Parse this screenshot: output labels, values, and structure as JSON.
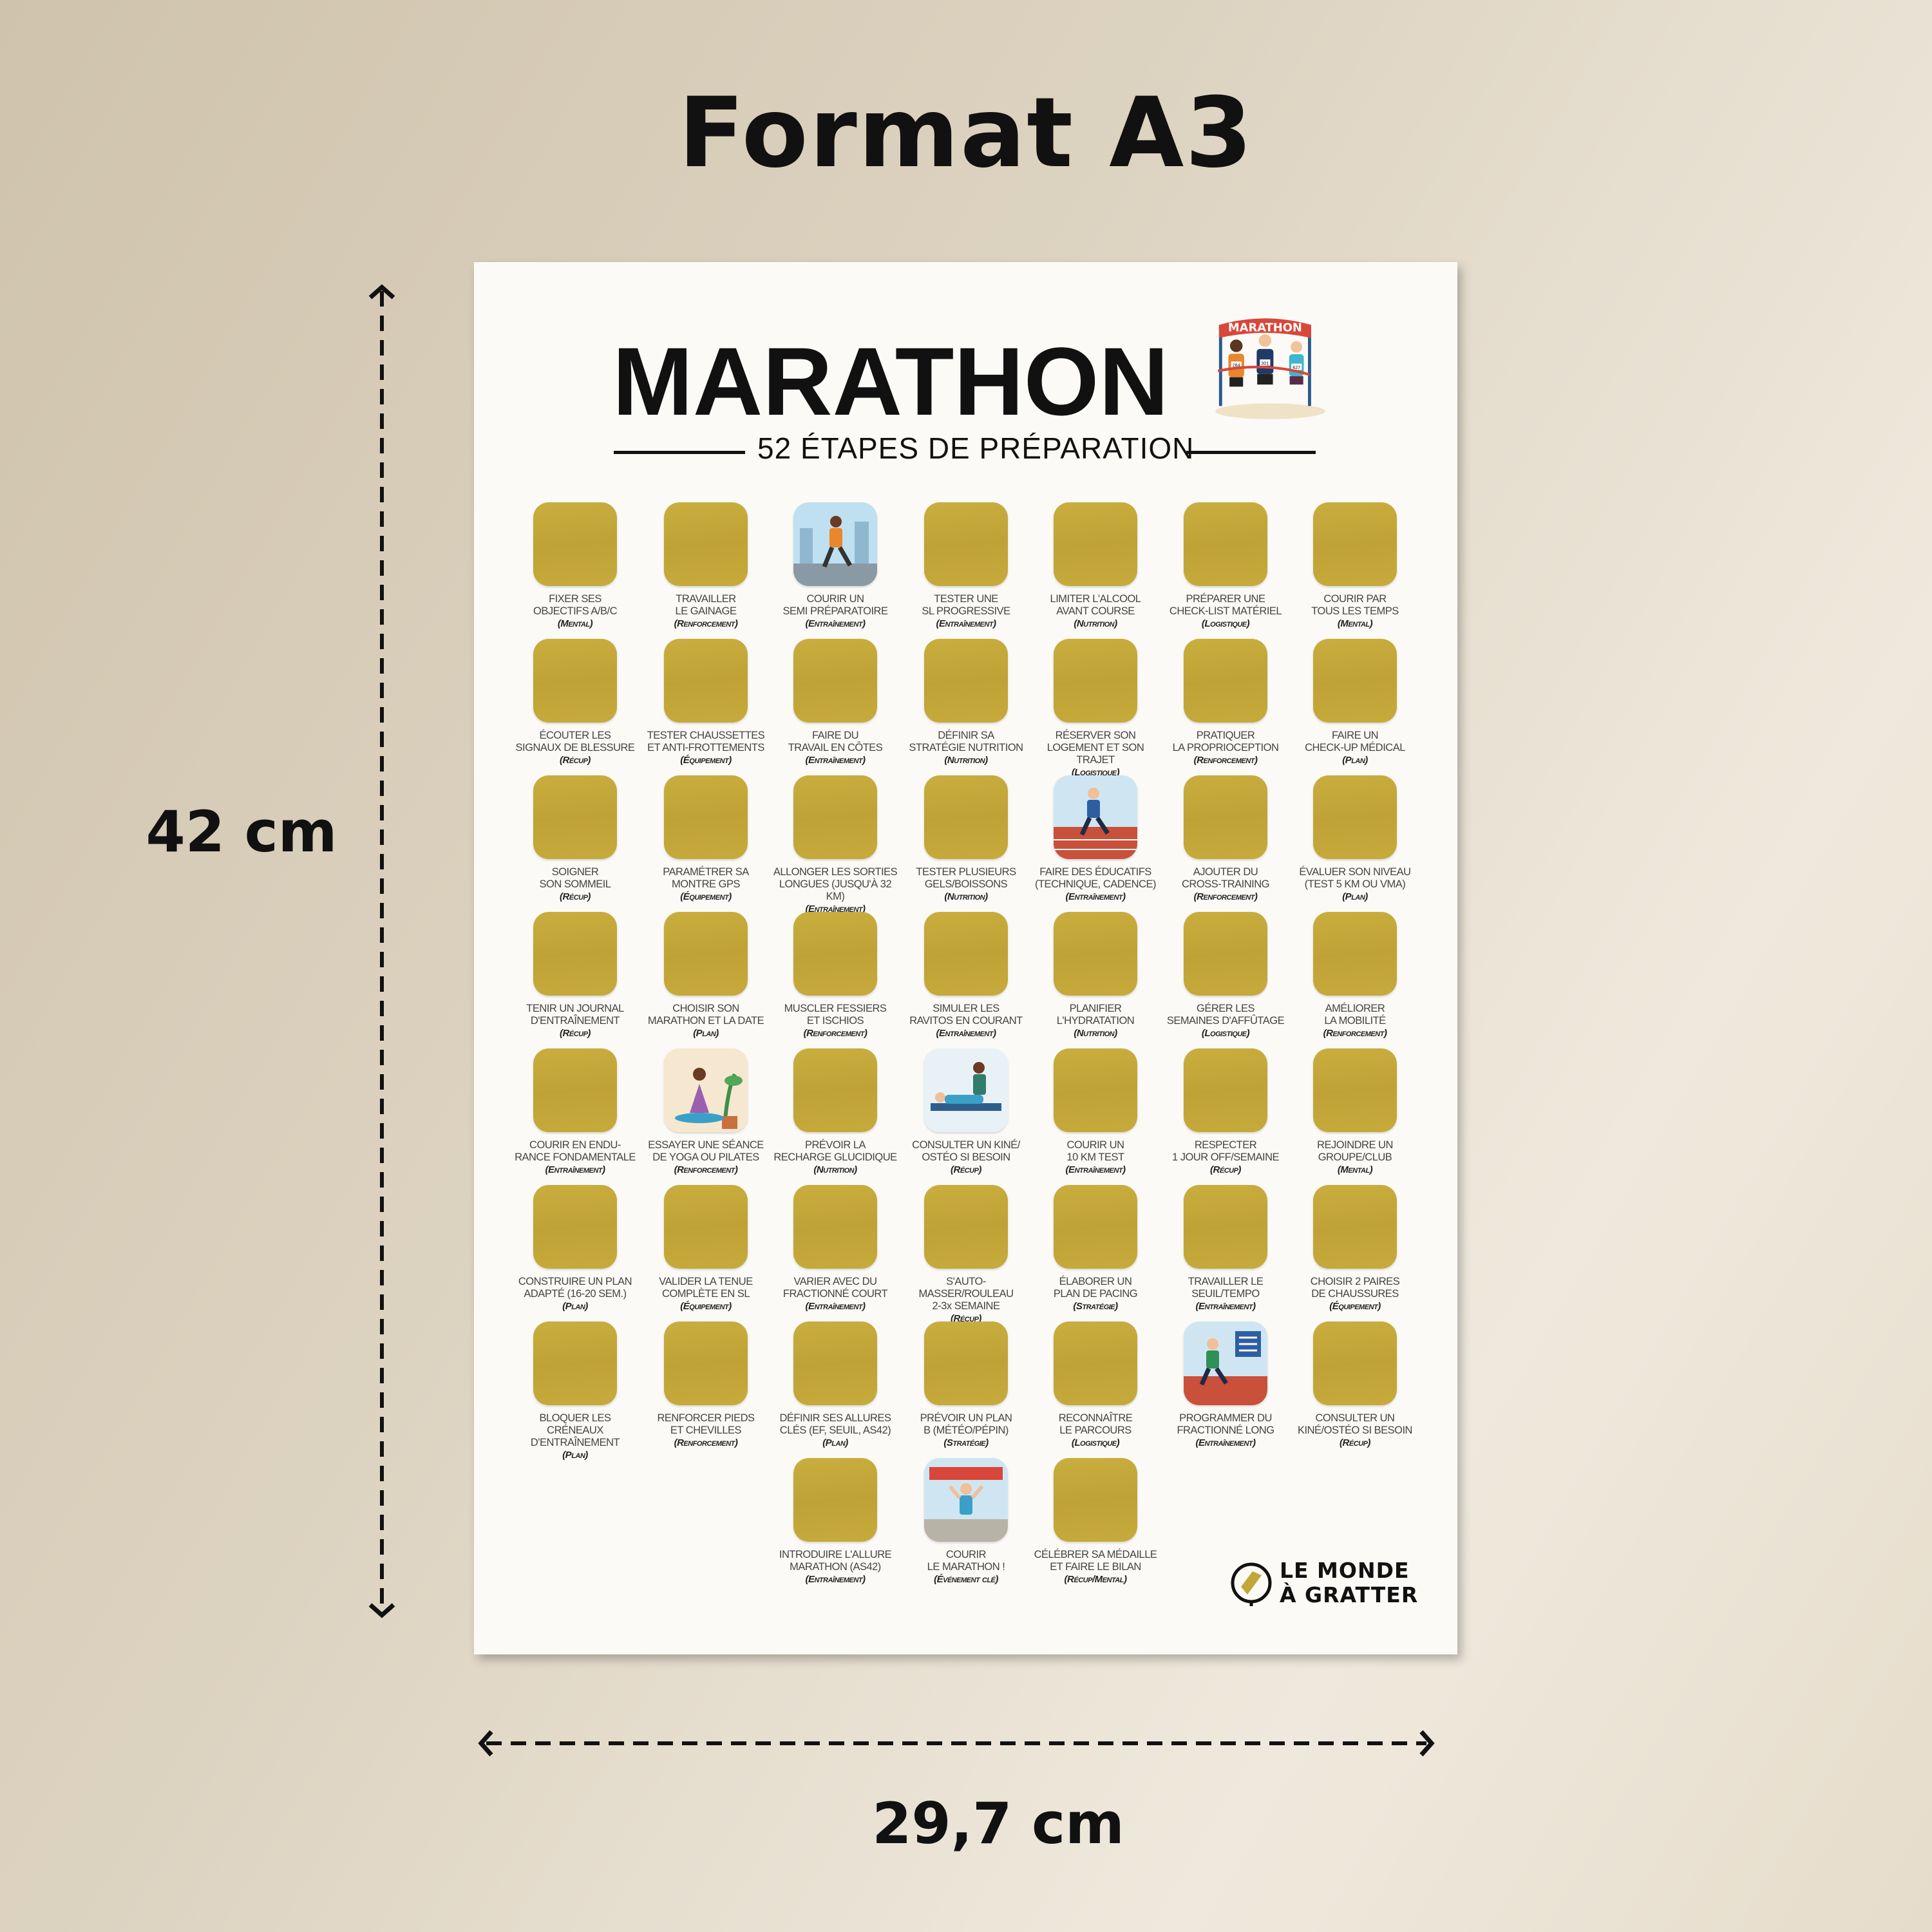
{
  "header": {
    "title": "Format A3"
  },
  "dimensions": {
    "height": "42 cm",
    "width": "29,7 cm"
  },
  "poster": {
    "title": "MARATHON",
    "subtitle": "52 ÉTAPES DE PRÉPARATION",
    "badge_text": "MARATHON",
    "badge_bibs": [
      "284",
      "301",
      "427"
    ],
    "tile_color": "#c2a63a",
    "brand": {
      "line1": "LE MONDE",
      "line2": "À GRATTER"
    },
    "items": [
      {
        "l1": "FIXER SES",
        "l2": "OBJECTIFS A/B/C",
        "cat": "(Mental)"
      },
      {
        "l1": "TRAVAILLER",
        "l2": "LE GAINAGE",
        "cat": "(Renforcement)"
      },
      {
        "l1": "COURIR UN",
        "l2": "SEMI PRÉPARATOIRE",
        "cat": "(Entraînement)",
        "img": "runner-city"
      },
      {
        "l1": "TESTER UNE",
        "l2": "SL PROGRESSIVE",
        "cat": "(Entraînement)"
      },
      {
        "l1": "LIMITER L'ALCOOL",
        "l2": "AVANT COURSE",
        "cat": "(Nutrition)"
      },
      {
        "l1": "PRÉPARER UNE",
        "l2": "CHECK-LIST MATÉRIEL",
        "cat": "(Logistique)"
      },
      {
        "l1": "COURIR PAR",
        "l2": "TOUS LES TEMPS",
        "cat": "(Mental)"
      },
      {
        "l1": "ÉCOUTER LES",
        "l2": "SIGNAUX DE BLESSURE",
        "cat": "(Récup)"
      },
      {
        "l1": "TESTER CHAUSSETTES",
        "l2": "ET ANTI-FROTTEMENTS",
        "cat": "(Équipement)"
      },
      {
        "l1": "FAIRE DU",
        "l2": "TRAVAIL EN CÔTES",
        "cat": "(Entraînement)"
      },
      {
        "l1": "DÉFINIR SA",
        "l2": "STRATÉGIE NUTRITION",
        "cat": "(Nutrition)"
      },
      {
        "l1": "RÉSERVER SON",
        "l2": "LOGEMENT ET SON TRAJET",
        "cat": "(Logistique)"
      },
      {
        "l1": "PRATIQUER",
        "l2": "LA PROPRIOCEPTION",
        "cat": "(Renforcement)"
      },
      {
        "l1": "FAIRE UN",
        "l2": "CHECK-UP MÉDICAL",
        "cat": "(Plan)"
      },
      {
        "l1": "SOIGNER",
        "l2": "SON SOMMEIL",
        "cat": "(Récup)"
      },
      {
        "l1": "PARAMÉTRER SA",
        "l2": "MONTRE GPS",
        "cat": "(Équipement)"
      },
      {
        "l1": "ALLONGER LES SORTIES",
        "l2": "LONGUES (JUSQU'À 32 KM)",
        "cat": "(Entraînement)"
      },
      {
        "l1": "TESTER PLUSIEURS",
        "l2": "GELS/BOISSONS",
        "cat": "(Nutrition)"
      },
      {
        "l1": "FAIRE DES ÉDUCATIFS",
        "l2": "(TECHNIQUE, CADENCE)",
        "cat": "(Entraînement)",
        "img": "runner-track"
      },
      {
        "l1": "AJOUTER DU",
        "l2": "CROSS-TRAINING",
        "cat": "(Renforcement)"
      },
      {
        "l1": "ÉVALUER SON NIVEAU",
        "l2": "(TEST 5 KM OU VMA)",
        "cat": "(Plan)"
      },
      {
        "l1": "TENIR UN JOURNAL",
        "l2": "D'ENTRAÎNEMENT",
        "cat": "(Récup)"
      },
      {
        "l1": "CHOISIR SON",
        "l2": "MARATHON ET LA DATE",
        "cat": "(Plan)"
      },
      {
        "l1": "MUSCLER FESSIERS",
        "l2": "ET ISCHIOS",
        "cat": "(Renforcement)"
      },
      {
        "l1": "SIMULER LES",
        "l2": "RAVITOS EN COURANT",
        "cat": "(Entraînement)"
      },
      {
        "l1": "PLANIFIER",
        "l2": "L'HYDRATATION",
        "cat": "(Nutrition)"
      },
      {
        "l1": "GÉRER LES",
        "l2": "SEMAINES D'AFFÛTAGE",
        "cat": "(Logistique)"
      },
      {
        "l1": "AMÉLIORER",
        "l2": "LA MOBILITÉ",
        "cat": "(Renforcement)"
      },
      {
        "l1": "COURIR EN ENDU-",
        "l2": "RANCE FONDAMENTALE",
        "cat": "(Entraînement)"
      },
      {
        "l1": "ESSAYER UNE SÉANCE",
        "l2": "DE YOGA OU PILATES",
        "cat": "(Renforcement)",
        "img": "yoga"
      },
      {
        "l1": "PRÉVOIR LA",
        "l2": "RECHARGE GLUCIDIQUE",
        "cat": "(Nutrition)"
      },
      {
        "l1": "CONSULTER UN KINÉ/",
        "l2": "OSTÉO SI BESOIN",
        "cat": "(Récup)",
        "img": "physio"
      },
      {
        "l1": "COURIR UN",
        "l2": "10 KM TEST",
        "cat": "(Entraînement)"
      },
      {
        "l1": "RESPECTER",
        "l2": "1 JOUR OFF/SEMAINE",
        "cat": "(Récup)"
      },
      {
        "l1": "REJOINDRE UN",
        "l2": "GROUPE/CLUB",
        "cat": "(Mental)"
      },
      {
        "l1": "CONSTRUIRE UN PLAN",
        "l2": "ADAPTÉ (16-20 SEM.)",
        "cat": "(Plan)"
      },
      {
        "l1": "VALIDER LA TENUE",
        "l2": "COMPLÈTE EN SL",
        "cat": "(Équipement)"
      },
      {
        "l1": "VARIER AVEC DU",
        "l2": "FRACTIONNÉ COURT",
        "cat": "(Entraînement)"
      },
      {
        "l1": "S'AUTO-MASSER/ROULEAU",
        "l2": "2-3x SEMAINE",
        "cat": "(Récup)"
      },
      {
        "l1": "ÉLABORER UN",
        "l2": "PLAN DE PACING",
        "cat": "(Stratégie)"
      },
      {
        "l1": "TRAVAILLER LE",
        "l2": "SEUIL/TEMPO",
        "cat": "(Entraînement)"
      },
      {
        "l1": "CHOISIR 2 PAIRES",
        "l2": "DE CHAUSSURES",
        "cat": "(Équipement)"
      },
      {
        "l1": "BLOQUER LES CRÉNEAUX",
        "l2": "D'ENTRAÎNEMENT",
        "cat": "(Plan)"
      },
      {
        "l1": "RENFORCER PIEDS",
        "l2": "ET CHEVILLES",
        "cat": "(Renforcement)"
      },
      {
        "l1": "DÉFINIR SES ALLURES",
        "l2": "CLÉS (EF, SEUIL, AS42)",
        "cat": "(Plan)"
      },
      {
        "l1": "PRÉVOIR UN PLAN",
        "l2": "B (MÉTÉO/PÉPIN)",
        "cat": "(Stratégie)"
      },
      {
        "l1": "RECONNAÎTRE",
        "l2": "LE PARCOURS",
        "cat": "(Logistique)"
      },
      {
        "l1": "PROGRAMMER DU",
        "l2": "FRACTIONNÉ LONG",
        "cat": "(Entraînement)",
        "img": "track-sign"
      },
      {
        "l1": "CONSULTER UN",
        "l2": "KINÉ/OSTÉO SI BESOIN",
        "cat": "(Récup)"
      },
      {
        "l1": "INTRODUIRE L'ALLURE",
        "l2": "MARATHON (AS42)",
        "cat": "(Entraînement)"
      },
      {
        "l1": "COURIR",
        "l2": "LE MARATHON !",
        "cat": "(Événement clé)",
        "img": "finish"
      },
      {
        "l1": "CÉLÉBRER SA MÉDAILLE",
        "l2": "ET FAIRE LE BILAN",
        "cat": "(Récup/Mental)"
      }
    ]
  }
}
